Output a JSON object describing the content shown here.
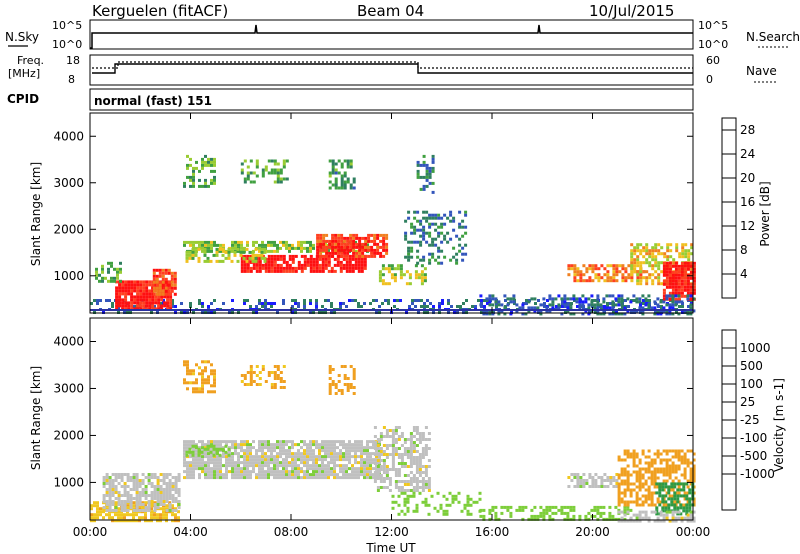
{
  "header": {
    "title": "Kerguelen (fitACF)",
    "beam": "Beam 04",
    "date": "10/Jul/2015"
  },
  "top_panels": {
    "nsky_label": "N.Sky",
    "nsearch_label": "N.Search",
    "nsky_ticks": [
      "10^5",
      "10^0"
    ],
    "nsearch_ticks": [
      "10^5",
      "10^0"
    ],
    "freq_label_1": "Freq.",
    "freq_label_2": "[MHz]",
    "freq_ticks": [
      "18",
      "8"
    ],
    "nave_label": "Nave",
    "nave_ticks": [
      "60",
      "0"
    ],
    "cpid_label": "CPID",
    "cpid_value": "normal (fast) 151"
  },
  "colors": {
    "power_scale": [
      "#1a1aff",
      "#3355bb",
      "#2f7f5f",
      "#40a040",
      "#99cc33",
      "#f0c020",
      "#f08020",
      "#ff4020",
      "#ff1010"
    ],
    "velocity_scale": [
      "#ff1010",
      "#ff6a10",
      "#f0a020",
      "#f0c820",
      "#bebebe",
      "#7dce3a",
      "#2e9a45",
      "#2f7f8f",
      "#2a50b0",
      "#1a1acc"
    ],
    "velocity_gray": "#c0c0c0"
  },
  "chart_data": [
    {
      "type": "heatmap",
      "title": "",
      "ylabel": "Slant Range [km]",
      "xlabel": "",
      "x_range": [
        "00:00",
        "00:00"
      ],
      "ylim": [
        200,
        4500
      ],
      "yticks": [
        1000,
        2000,
        3000,
        4000
      ],
      "colorbar": {
        "label": "Power [dB]",
        "ticks": [
          4,
          8,
          12,
          16,
          20,
          24,
          28
        ],
        "range": [
          0,
          30
        ]
      },
      "regions": [
        {
          "t0": 0.0,
          "t1": 24.0,
          "r0": 200,
          "r1": 500,
          "value": 6,
          "density": 0.35
        },
        {
          "t0": 1.0,
          "t1": 3.2,
          "r0": 300,
          "r1": 900,
          "value": 28,
          "density": 0.9
        },
        {
          "t0": 2.5,
          "t1": 3.4,
          "r0": 600,
          "r1": 1150,
          "value": 24,
          "density": 0.8
        },
        {
          "t0": 0.2,
          "t1": 1.2,
          "r0": 900,
          "r1": 1300,
          "value": 12,
          "density": 0.4
        },
        {
          "t0": 3.7,
          "t1": 11.0,
          "r0": 1550,
          "r1": 1750,
          "value": 14,
          "density": 0.7
        },
        {
          "t0": 6.0,
          "t1": 11.0,
          "r0": 1100,
          "r1": 1450,
          "value": 28,
          "density": 0.85
        },
        {
          "t0": 9.0,
          "t1": 11.8,
          "r0": 1400,
          "r1": 1900,
          "value": 26,
          "density": 0.8
        },
        {
          "t0": 3.8,
          "t1": 7.0,
          "r0": 1300,
          "r1": 1600,
          "value": 16,
          "density": 0.5
        },
        {
          "t0": 3.7,
          "t1": 5.0,
          "r0": 2900,
          "r1": 3600,
          "value": 12,
          "density": 0.45
        },
        {
          "t0": 6.0,
          "t1": 7.8,
          "r0": 3000,
          "r1": 3500,
          "value": 12,
          "density": 0.4
        },
        {
          "t0": 9.5,
          "t1": 10.5,
          "r0": 2900,
          "r1": 3500,
          "value": 10,
          "density": 0.4
        },
        {
          "t0": 11.5,
          "t1": 13.3,
          "r0": 800,
          "r1": 1250,
          "value": 16,
          "density": 0.5
        },
        {
          "t0": 13.0,
          "t1": 13.6,
          "r0": 2800,
          "r1": 3600,
          "value": 8,
          "density": 0.35
        },
        {
          "t0": 12.5,
          "t1": 15.0,
          "r0": 1300,
          "r1": 2400,
          "value": 8,
          "density": 0.35
        },
        {
          "t0": 19.0,
          "t1": 22.0,
          "r0": 900,
          "r1": 1250,
          "value": 22,
          "density": 0.6
        },
        {
          "t0": 21.5,
          "t1": 24.0,
          "r0": 800,
          "r1": 1700,
          "value": 18,
          "density": 0.6
        },
        {
          "t0": 22.8,
          "t1": 24.0,
          "r0": 500,
          "r1": 1300,
          "value": 28,
          "density": 0.8
        },
        {
          "t0": 15.5,
          "t1": 24.0,
          "r0": 200,
          "r1": 600,
          "value": 6,
          "density": 0.4
        }
      ]
    },
    {
      "type": "heatmap",
      "title": "",
      "ylabel": "Slant Range [km]",
      "xlabel": "Time UT",
      "xticks": [
        "00:00",
        "04:00",
        "08:00",
        "12:00",
        "16:00",
        "20:00",
        "00:00"
      ],
      "ylim": [
        200,
        4500
      ],
      "yticks": [
        1000,
        2000,
        3000,
        4000
      ],
      "colorbar": {
        "label": "Velocity [m s-1]",
        "ticks": [
          1000,
          500,
          100,
          25,
          -25,
          -100,
          -500,
          -1000
        ]
      },
      "regions": [
        {
          "t0": 0.0,
          "t1": 3.5,
          "r0": 200,
          "r1": 600,
          "value": -80,
          "density": 0.7
        },
        {
          "t0": 0.5,
          "t1": 3.5,
          "r0": 400,
          "r1": 1200,
          "value": 0,
          "density": 0.7
        },
        {
          "t0": 3.7,
          "t1": 11.5,
          "r0": 1100,
          "r1": 1900,
          "value": 0,
          "density": 0.85
        },
        {
          "t0": 3.8,
          "t1": 5.5,
          "r0": 1600,
          "r1": 1800,
          "value": 60,
          "density": 0.6
        },
        {
          "t0": 3.7,
          "t1": 5.0,
          "r0": 2900,
          "r1": 3600,
          "value": -120,
          "density": 0.5
        },
        {
          "t0": 6.0,
          "t1": 7.8,
          "r0": 3000,
          "r1": 3500,
          "value": -120,
          "density": 0.4
        },
        {
          "t0": 9.5,
          "t1": 10.5,
          "r0": 2900,
          "r1": 3500,
          "value": -150,
          "density": 0.4
        },
        {
          "t0": 11.3,
          "t1": 13.5,
          "r0": 800,
          "r1": 2200,
          "value": 0,
          "density": 0.55
        },
        {
          "t0": 12.0,
          "t1": 15.5,
          "r0": 300,
          "r1": 800,
          "value": 60,
          "density": 0.3
        },
        {
          "t0": 15.5,
          "t1": 21.5,
          "r0": 200,
          "r1": 500,
          "value": 60,
          "density": 0.45
        },
        {
          "t0": 19.0,
          "t1": 21.0,
          "r0": 900,
          "r1": 1200,
          "value": 0,
          "density": 0.6
        },
        {
          "t0": 21.0,
          "t1": 24.0,
          "r0": 500,
          "r1": 1700,
          "value": -200,
          "density": 0.6
        },
        {
          "t0": 22.5,
          "t1": 24.0,
          "r0": 300,
          "r1": 1000,
          "value": 400,
          "density": 0.6
        },
        {
          "t0": 21.0,
          "t1": 24.0,
          "r0": 200,
          "r1": 400,
          "value": 0,
          "density": 0.6
        }
      ]
    }
  ]
}
